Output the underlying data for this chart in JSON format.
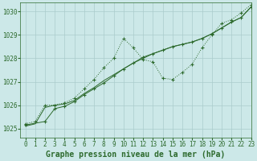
{
  "bg_color": "#cce8e8",
  "grid_color": "#aacccc",
  "line_color": "#2d6a2d",
  "title": "Graphe pression niveau de la mer (hPa)",
  "xlim": [
    -0.5,
    23
  ],
  "ylim": [
    1024.6,
    1030.4
  ],
  "yticks": [
    1025,
    1026,
    1027,
    1028,
    1029,
    1030
  ],
  "xticks": [
    0,
    1,
    2,
    3,
    4,
    5,
    6,
    7,
    8,
    9,
    10,
    11,
    12,
    13,
    14,
    15,
    16,
    17,
    18,
    19,
    20,
    21,
    22,
    23
  ],
  "series1_x": [
    0,
    1,
    2,
    3,
    4,
    5,
    6,
    7,
    8,
    9,
    10,
    11,
    12,
    13,
    14,
    15,
    16,
    17,
    18,
    19,
    20,
    21,
    22,
    23
  ],
  "series1_y": [
    1025.2,
    1025.3,
    1026.0,
    1026.0,
    1026.1,
    1026.3,
    1026.7,
    1027.1,
    1027.6,
    1028.0,
    1028.85,
    1028.45,
    1027.95,
    1027.85,
    1027.15,
    1027.1,
    1027.4,
    1027.75,
    1028.45,
    1029.0,
    1029.5,
    1029.65,
    1029.95,
    1030.3
  ],
  "series2_x": [
    0,
    1,
    2,
    3,
    4,
    5,
    6,
    7,
    8,
    9,
    10,
    11,
    12,
    13,
    14,
    15,
    16,
    17,
    18,
    19,
    20,
    21,
    22,
    23
  ],
  "series2_y": [
    1025.1,
    1025.2,
    1025.9,
    1026.0,
    1026.05,
    1026.2,
    1026.5,
    1026.75,
    1027.05,
    1027.3,
    1027.55,
    1027.8,
    1028.0,
    1028.2,
    1028.35,
    1028.5,
    1028.6,
    1028.7,
    1028.85,
    1029.05,
    1029.3,
    1029.55,
    1029.75,
    1030.2
  ],
  "series3_x": [
    0,
    2,
    3,
    4,
    5,
    6,
    7,
    8,
    9,
    10,
    11,
    12,
    13,
    14,
    15,
    16,
    17,
    18,
    19,
    20,
    21,
    22,
    23
  ],
  "series3_y": [
    1025.15,
    1025.3,
    1025.85,
    1025.95,
    1026.15,
    1026.45,
    1026.7,
    1026.95,
    1027.25,
    1027.55,
    1027.8,
    1028.05,
    1028.2,
    1028.35,
    1028.5,
    1028.6,
    1028.7,
    1028.85,
    1029.05,
    1029.3,
    1029.55,
    1029.75,
    1030.2
  ],
  "title_fontsize": 7,
  "tick_fontsize": 5.5
}
